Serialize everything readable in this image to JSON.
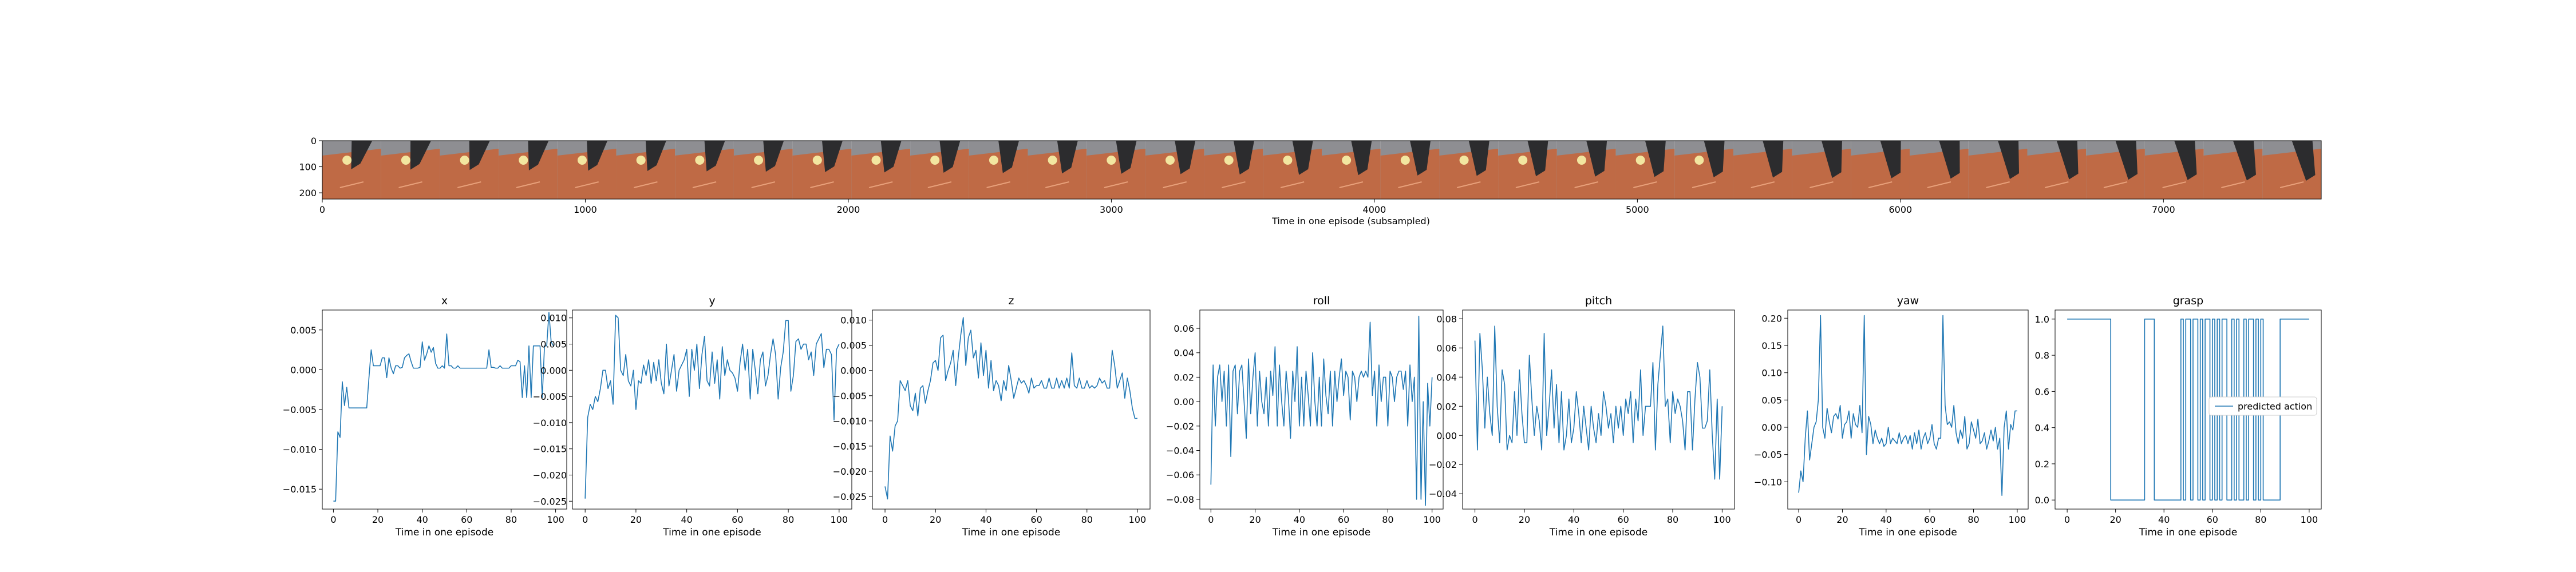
{
  "strip": {
    "xlabel": "Time in one episode (subsampled)",
    "xticks": [
      0,
      1000,
      2000,
      3000,
      4000,
      5000,
      6000,
      7000
    ],
    "yticks": [
      0,
      100,
      200
    ],
    "xlim": [
      0,
      7600
    ],
    "ylim": [
      224,
      0
    ],
    "frame_count": 34,
    "colors": {
      "sky": "#8e8e92",
      "table": "#bf6a45",
      "arm": "#2c2c2e",
      "ball": "#f2e6a0"
    }
  },
  "chart_data": [
    {
      "type": "line",
      "title": "x",
      "xlabel": "Time in one episode",
      "xlim": [
        -5,
        105
      ],
      "ylim": [
        -0.0175,
        0.0075
      ],
      "yticks": [
        -0.015,
        -0.01,
        -0.005,
        0.0,
        0.005
      ],
      "ytick_labels": [
        "−0.015",
        "−0.010",
        "−0.005",
        "0.000",
        "0.005"
      ],
      "xticks": [
        0,
        20,
        40,
        60,
        80,
        100
      ],
      "y": [
        -0.0165,
        -0.0165,
        -0.0078,
        -0.0085,
        -0.0015,
        -0.0045,
        -0.0022,
        -0.0048,
        -0.0048,
        -0.0048,
        -0.0048,
        -0.0048,
        -0.0048,
        -0.0048,
        -0.0048,
        -0.0048,
        -0.001,
        0.0025,
        0.0005,
        0.0005,
        0.0005,
        0.0005,
        0.0015,
        0.0015,
        -0.001,
        0.0015,
        0.0002,
        -0.0005,
        0.0005,
        0.0005,
        0.0002,
        0.0003,
        0.0015,
        0.0018,
        0.002,
        0.001,
        0.0002,
        0.0002,
        0.0002,
        0.0003,
        0.0035,
        0.0012,
        0.002,
        0.003,
        0.0022,
        0.0028,
        0.0008,
        0.0002,
        0.0002,
        0.0005,
        0.0002,
        0.0045,
        0.0005,
        0.0005,
        0.0002,
        0.0002,
        0.0005,
        0.0002,
        0.0002,
        0.0002,
        0.0002,
        0.0002,
        0.0002,
        0.0002,
        0.0002,
        0.0002,
        0.0002,
        0.0002,
        0.0002,
        0.0002,
        0.0025,
        0.0003,
        0.0003,
        0.0002,
        0.0002,
        0.0005,
        0.0002,
        0.0002,
        0.0002,
        0.0002,
        0.0005,
        0.0005,
        0.0005,
        0.0012,
        0.001,
        -0.0035,
        0.0005,
        -0.0035,
        0.003,
        -0.0035,
        0.003,
        0.003,
        0.003,
        0.003,
        -0.0035,
        0.003,
        0.003,
        0.0072,
        0.0035,
        0.003
      ]
    },
    {
      "type": "line",
      "title": "y",
      "xlabel": "Time in one episode",
      "xlim": [
        -5,
        105
      ],
      "ylim": [
        -0.0265,
        0.0115
      ],
      "yticks": [
        -0.025,
        -0.02,
        -0.015,
        -0.01,
        -0.005,
        0.0,
        0.005,
        0.01
      ],
      "ytick_labels": [
        "−0.025",
        "−0.020",
        "−0.015",
        "−0.010",
        "−0.005",
        "0.000",
        "0.005",
        "0.010"
      ],
      "xticks": [
        0,
        20,
        40,
        60,
        80,
        100
      ],
      "y": [
        -0.0245,
        -0.009,
        -0.0065,
        -0.0075,
        -0.005,
        -0.006,
        -0.0035,
        0.0,
        0.0,
        -0.0035,
        -0.002,
        -0.0065,
        0.0105,
        0.01,
        0.0,
        -0.001,
        0.003,
        -0.002,
        -0.003,
        0.0,
        -0.0075,
        -0.002,
        -0.0025,
        0.001,
        -0.001,
        0.002,
        -0.0025,
        0.0015,
        -0.002,
        0.002,
        -0.0025,
        -0.0045,
        0.005,
        -0.003,
        0.0,
        0.003,
        -0.004,
        0.0,
        0.001,
        0.002,
        0.004,
        -0.005,
        0.004,
        0.0,
        0.005,
        -0.0035,
        0.003,
        0.0065,
        -0.002,
        -0.003,
        0.0035,
        -0.0025,
        0.002,
        -0.0055,
        0.0045,
        -0.001,
        0.002,
        0.0,
        -0.0005,
        -0.0015,
        -0.004,
        0.0015,
        0.005,
        0.0,
        0.004,
        -0.0055,
        0.004,
        0.0,
        -0.0045,
        0.002,
        0.0035,
        -0.003,
        -0.001,
        0.003,
        0.006,
        0.003,
        -0.0055,
        0.0005,
        0.0035,
        0.0095,
        0.0095,
        -0.004,
        -0.001,
        0.0055,
        0.006,
        0.004,
        0.005,
        0.005,
        0.002,
        0.0035,
        -0.001,
        0.005,
        0.006,
        0.007,
        0.0005,
        0.004,
        0.004,
        0.003,
        -0.0095,
        0.004,
        0.005
      ]
    },
    {
      "type": "line",
      "title": "z",
      "xlabel": "Time in one episode",
      "xlim": [
        -5,
        105
      ],
      "ylim": [
        -0.0275,
        0.012
      ],
      "yticks": [
        -0.025,
        -0.02,
        -0.015,
        -0.01,
        -0.005,
        0.0,
        0.005,
        0.01
      ],
      "ytick_labels": [
        "−0.025",
        "−0.020",
        "−0.015",
        "−0.010",
        "−0.005",
        "0.000",
        "0.005",
        "0.010"
      ],
      "xticks": [
        0,
        20,
        40,
        60,
        80,
        100
      ],
      "y": [
        -0.023,
        -0.0255,
        -0.013,
        -0.016,
        -0.011,
        -0.01,
        -0.002,
        -0.003,
        -0.004,
        -0.002,
        -0.007,
        -0.008,
        -0.0045,
        -0.009,
        -0.0035,
        -0.003,
        -0.0065,
        -0.004,
        -0.002,
        0.0015,
        0.002,
        0.0,
        0.0065,
        0.007,
        -0.002,
        0.0,
        0.0015,
        0.004,
        -0.003,
        0.0025,
        0.007,
        0.0105,
        0.001,
        0.0065,
        0.008,
        0.0025,
        0.004,
        -0.0015,
        0.0055,
        -0.001,
        0.004,
        -0.0035,
        0.002,
        -0.004,
        -0.002,
        -0.003,
        -0.006,
        -0.002,
        -0.004,
        0.001,
        -0.002,
        -0.0055,
        -0.0035,
        -0.0015,
        -0.0025,
        -0.002,
        -0.003,
        -0.0045,
        -0.0015,
        -0.0035,
        -0.003,
        -0.003,
        -0.002,
        -0.0035,
        -0.0035,
        -0.0015,
        -0.0035,
        -0.0035,
        -0.0015,
        -0.0035,
        -0.002,
        -0.0035,
        -0.0015,
        -0.0035,
        0.0035,
        -0.003,
        -0.0035,
        -0.0015,
        -0.0035,
        -0.0035,
        -0.002,
        -0.0035,
        -0.003,
        -0.0035,
        -0.003,
        -0.0015,
        -0.0025,
        -0.002,
        -0.0035,
        -0.0035,
        0.004,
        0.001,
        -0.0035,
        -0.002,
        -0.0005,
        -0.0055,
        -0.0015,
        -0.004,
        -0.0075,
        -0.0095,
        -0.0095
      ]
    },
    {
      "type": "line",
      "title": "roll",
      "xlabel": "Time in one episode",
      "xlim": [
        -5,
        105
      ],
      "ylim": [
        -0.088,
        0.075
      ],
      "yticks": [
        -0.08,
        -0.06,
        -0.04,
        -0.02,
        0.0,
        0.02,
        0.04,
        0.06
      ],
      "ytick_labels": [
        "−0.08",
        "−0.06",
        "−0.04",
        "−0.02",
        "0.00",
        "0.02",
        "0.04",
        "0.06"
      ],
      "xticks": [
        0,
        20,
        40,
        60,
        80,
        100
      ],
      "y": [
        -0.068,
        0.03,
        -0.02,
        0.02,
        0.03,
        0.0,
        0.025,
        -0.02,
        0.03,
        -0.045,
        0.025,
        0.03,
        -0.01,
        0.025,
        0.03,
        0.0,
        -0.03,
        0.035,
        -0.01,
        0.02,
        0.04,
        -0.02,
        0.025,
        0.0,
        -0.01,
        0.02,
        -0.02,
        0.025,
        0.005,
        0.045,
        -0.02,
        0.03,
        0.0,
        -0.02,
        0.025,
        0.005,
        -0.03,
        0.025,
        0.0,
        0.045,
        -0.02,
        0.02,
        -0.02,
        0.025,
        0.005,
        -0.02,
        0.04,
        0.0,
        -0.02,
        0.02,
        -0.02,
        0.035,
        0.005,
        -0.01,
        0.025,
        -0.02,
        0.025,
        0.0,
        0.02,
        0.035,
        0.005,
        0.025,
        0.02,
        -0.015,
        0.025,
        0.02,
        0.0,
        0.02,
        0.025,
        0.02,
        0.025,
        0.02,
        0.065,
        0.005,
        0.025,
        -0.02,
        0.03,
        0.0,
        0.02,
        0.02,
        -0.02,
        0.025,
        0.02,
        0.0,
        0.02,
        0.025,
        0.025,
        0.01,
        0.025,
        -0.02,
        0.03,
        0.0,
        0.02,
        -0.08,
        0.07,
        -0.08,
        0.0,
        -0.085,
        0.015,
        -0.02,
        0.02
      ]
    },
    {
      "type": "line",
      "title": "pitch",
      "xlabel": "Time in one episode",
      "xlim": [
        -5,
        105
      ],
      "ylim": [
        -0.0505,
        0.086
      ],
      "yticks": [
        -0.04,
        -0.02,
        0.0,
        0.02,
        0.04,
        0.06,
        0.08
      ],
      "ytick_labels": [
        "−0.04",
        "−0.02",
        "0.00",
        "0.02",
        "0.04",
        "0.06",
        "0.08"
      ],
      "xticks": [
        0,
        20,
        40,
        60,
        80,
        100
      ],
      "y": [
        0.065,
        -0.01,
        0.07,
        0.045,
        0.005,
        0.04,
        0.015,
        0.0,
        0.075,
        0.02,
        -0.005,
        0.045,
        0.035,
        -0.01,
        0.0,
        -0.005,
        0.03,
        0.0,
        0.045,
        0.015,
        -0.005,
        -0.005,
        0.055,
        0.025,
        0.0,
        0.02,
        0.01,
        -0.01,
        0.07,
        0.0,
        0.02,
        0.045,
        0.005,
        0.035,
        -0.005,
        0.03,
        -0.01,
        0.0,
        0.025,
        -0.005,
        0.005,
        0.03,
        0.015,
        -0.005,
        0.02,
        0.005,
        -0.01,
        0.02,
        0.005,
        -0.005,
        0.015,
        0.0,
        0.03,
        0.02,
        0.005,
        0.015,
        -0.005,
        0.02,
        0.005,
        0.02,
        0.0,
        0.025,
        0.015,
        0.03,
        -0.005,
        0.025,
        0.01,
        0.045,
        0.0,
        0.02,
        0.02,
        0.02,
        0.05,
        -0.01,
        0.035,
        0.055,
        0.075,
        0.02,
        0.025,
        -0.005,
        0.03,
        0.015,
        0.025,
        0.02,
        0.01,
        -0.01,
        0.03,
        0.03,
        -0.01,
        0.025,
        0.05,
        0.04,
        0.005,
        0.005,
        0.01,
        0.045,
        0.0,
        -0.03,
        0.025,
        -0.03,
        0.02
      ]
    },
    {
      "type": "line",
      "title": "yaw",
      "xlabel": "Time in one episode",
      "xlim": [
        -5,
        105
      ],
      "ylim": [
        -0.15,
        0.215
      ],
      "yticks": [
        -0.1,
        -0.05,
        0.0,
        0.05,
        0.1,
        0.15,
        0.2
      ],
      "ytick_labels": [
        "−0.10",
        "−0.05",
        "0.00",
        "0.05",
        "0.10",
        "0.15",
        "0.20"
      ],
      "xticks": [
        0,
        20,
        40,
        60,
        80,
        100
      ],
      "y": [
        -0.12,
        -0.08,
        -0.1,
        -0.02,
        0.03,
        -0.06,
        -0.03,
        0.0,
        0.01,
        0.05,
        0.205,
        0.0,
        -0.02,
        0.035,
        0.01,
        -0.01,
        0.02,
        0.025,
        0.015,
        0.04,
        -0.02,
        0.005,
        0.01,
        0.03,
        -0.02,
        0.025,
        0.005,
        0.0,
        0.04,
        -0.01,
        0.205,
        -0.05,
        0.02,
        0.005,
        -0.03,
        -0.005,
        -0.02,
        -0.03,
        -0.02,
        -0.035,
        -0.03,
        0.0,
        -0.03,
        -0.02,
        -0.025,
        -0.03,
        -0.01,
        -0.03,
        -0.02,
        -0.015,
        -0.03,
        -0.015,
        -0.04,
        -0.01,
        -0.03,
        -0.005,
        -0.04,
        -0.02,
        -0.01,
        -0.03,
        -0.02,
        0.005,
        -0.03,
        -0.04,
        -0.02,
        -0.02,
        0.205,
        0.04,
        0.005,
        0.01,
        0.0,
        0.04,
        -0.01,
        -0.03,
        -0.005,
        -0.02,
        0.02,
        -0.04,
        -0.03,
        0.01,
        -0.005,
        -0.02,
        0.015,
        -0.03,
        -0.025,
        -0.01,
        -0.04,
        -0.025,
        -0.005,
        -0.025,
        0.0,
        -0.04,
        -0.02,
        -0.125,
        0.0,
        0.03,
        -0.04,
        0.005,
        -0.005,
        0.03,
        0.03
      ]
    },
    {
      "type": "line",
      "title": "grasp",
      "xlabel": "Time in one episode",
      "xlim": [
        -5,
        105
      ],
      "ylim": [
        -0.05,
        1.05
      ],
      "yticks": [
        0.0,
        0.2,
        0.4,
        0.6,
        0.8,
        1.0
      ],
      "ytick_labels": [
        "0.0",
        "0.2",
        "0.4",
        "0.6",
        "0.8",
        "1.0"
      ],
      "xticks": [
        0,
        20,
        40,
        60,
        80,
        100
      ],
      "legend": {
        "label": "predicted action",
        "placement": "center-right"
      },
      "y": [
        1,
        1,
        1,
        1,
        1,
        1,
        1,
        1,
        1,
        1,
        1,
        1,
        1,
        1,
        1,
        1,
        1,
        1,
        0,
        0,
        0,
        0,
        0,
        0,
        0,
        0,
        0,
        0,
        0,
        0,
        0,
        0,
        1,
        1,
        1,
        1,
        0,
        0,
        0,
        0,
        0,
        0,
        0,
        0,
        0,
        0,
        0,
        1,
        0,
        1,
        1,
        0,
        1,
        1,
        0,
        1,
        0,
        1,
        1,
        0,
        1,
        0,
        1,
        0,
        1,
        1,
        0,
        0,
        1,
        0,
        1,
        0,
        0,
        1,
        0,
        1,
        1,
        0,
        1,
        0,
        1,
        0,
        0,
        0,
        0,
        0,
        0,
        0,
        1,
        1,
        1,
        1,
        1,
        1,
        1,
        1,
        1,
        1,
        1,
        1,
        1
      ]
    }
  ]
}
